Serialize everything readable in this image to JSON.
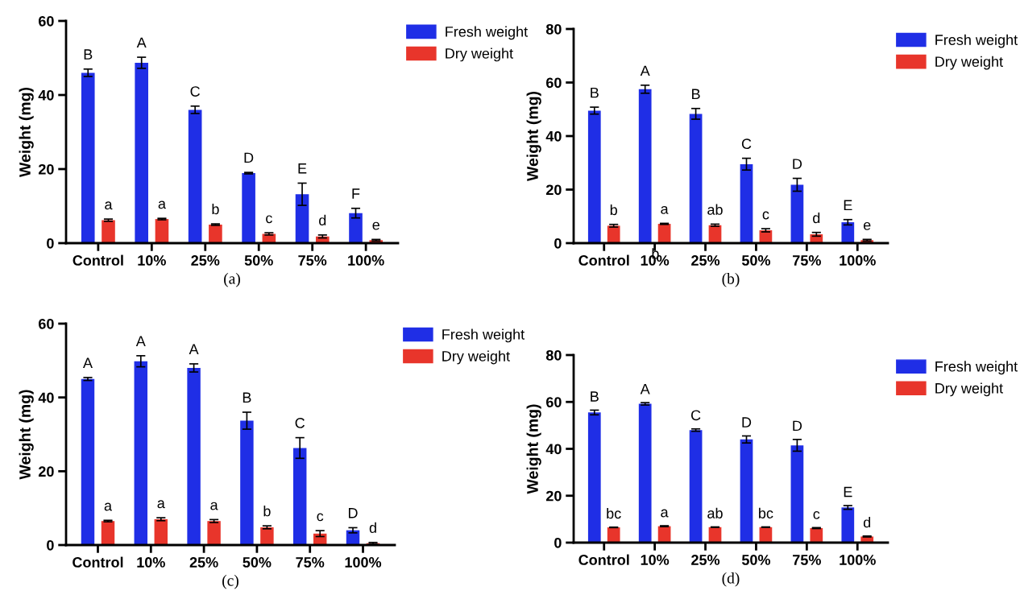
{
  "chart_data": [
    {
      "type": "bar",
      "xlabel": "(a)",
      "ylabel": "Weight (mg)",
      "categories": [
        "Control",
        "10%",
        "25%",
        "50%",
        "75%",
        "100%"
      ],
      "ylim": [
        0,
        60
      ],
      "yticks": [
        0,
        20,
        40,
        60
      ],
      "legend": "top right",
      "grid": false,
      "series": [
        {
          "name": "Fresh weight",
          "color": "#1f2ee6",
          "values": [
            46,
            48.7,
            36,
            18.9,
            13.2,
            8.1
          ],
          "errors": [
            1,
            1.5,
            1,
            0.2,
            3,
            1.3
          ],
          "value_labels": [
            "B",
            "A",
            "C",
            "D",
            "E",
            "F"
          ]
        },
        {
          "name": "Dry weight",
          "color": "#e8352b",
          "values": [
            6.2,
            6.5,
            5,
            2.5,
            1.8,
            0.8
          ],
          "errors": [
            0.3,
            0.2,
            0.2,
            0.3,
            0.4,
            0.2
          ],
          "value_labels": [
            "a",
            "a",
            "b",
            "c",
            "d",
            "e"
          ]
        }
      ]
    },
    {
      "type": "bar",
      "xlabel": "(b)",
      "ylabel": "Weight (mg)",
      "categories": [
        "Control",
        "10%",
        "25%",
        "50%",
        "75%",
        "100%"
      ],
      "ylim": [
        0,
        80
      ],
      "yticks": [
        0,
        20,
        40,
        60,
        80
      ],
      "legend": "top right",
      "grid": false,
      "annotations": [
        "b"
      ],
      "series": [
        {
          "name": "Fresh weight",
          "color": "#1f2ee6",
          "values": [
            49.5,
            57.5,
            48.3,
            29.5,
            21.8,
            7.8
          ],
          "errors": [
            1.3,
            1.5,
            2,
            2.2,
            2.4,
            1
          ],
          "value_labels": [
            "B",
            "A",
            "B",
            "C",
            "D",
            "E"
          ]
        },
        {
          "name": "Dry weight",
          "color": "#e8352b",
          "values": [
            6.5,
            7.2,
            6.7,
            4.8,
            3.3,
            1.1
          ],
          "errors": [
            0.5,
            0.2,
            0.4,
            0.6,
            0.7,
            0.3
          ],
          "value_labels": [
            "b",
            "a",
            "ab",
            "c",
            "d",
            "e"
          ]
        }
      ]
    },
    {
      "type": "bar",
      "xlabel": "(c)",
      "ylabel": "Weight (mg)",
      "categories": [
        "Control",
        "10%",
        "25%",
        "50%",
        "75%",
        "100%"
      ],
      "ylim": [
        0,
        60
      ],
      "yticks": [
        0,
        20,
        40,
        60
      ],
      "legend": "top right",
      "grid": false,
      "series": [
        {
          "name": "Fresh weight",
          "color": "#1f2ee6",
          "values": [
            45,
            49.8,
            48,
            33.7,
            26.3,
            4
          ],
          "errors": [
            0.4,
            1.5,
            1.1,
            2.3,
            2.8,
            0.7
          ],
          "value_labels": [
            "A",
            "A",
            "A",
            "B",
            "C",
            "D"
          ]
        },
        {
          "name": "Dry weight",
          "color": "#e8352b",
          "values": [
            6.5,
            7,
            6.5,
            4.8,
            3.1,
            0.5
          ],
          "errors": [
            0.2,
            0.4,
            0.4,
            0.4,
            0.8,
            0.2
          ],
          "value_labels": [
            "a",
            "a",
            "a",
            "b",
            "c",
            "d"
          ]
        }
      ]
    },
    {
      "type": "bar",
      "xlabel": "(d)",
      "ylabel": "Weight (mg)",
      "categories": [
        "Control",
        "10%",
        "25%",
        "50%",
        "75%",
        "100%"
      ],
      "ylim": [
        0,
        80
      ],
      "yticks": [
        0,
        20,
        40,
        60,
        80
      ],
      "legend": "top right",
      "grid": false,
      "series": [
        {
          "name": "Fresh weight",
          "color": "#1f2ee6",
          "values": [
            55.5,
            59.2,
            48,
            44,
            41.5,
            15
          ],
          "errors": [
            1,
            0.5,
            0.5,
            1.5,
            2.5,
            0.8
          ],
          "value_labels": [
            "B",
            "A",
            "C",
            "D",
            "D",
            "E"
          ]
        },
        {
          "name": "Dry weight",
          "color": "#e8352b",
          "values": [
            6.5,
            7,
            6.6,
            6.6,
            6.2,
            2.6
          ],
          "errors": [
            0.1,
            0.2,
            0.1,
            0.1,
            0.2,
            0.2
          ],
          "value_labels": [
            "bc",
            "a",
            "ab",
            "bc",
            "c",
            "d"
          ]
        }
      ]
    }
  ]
}
